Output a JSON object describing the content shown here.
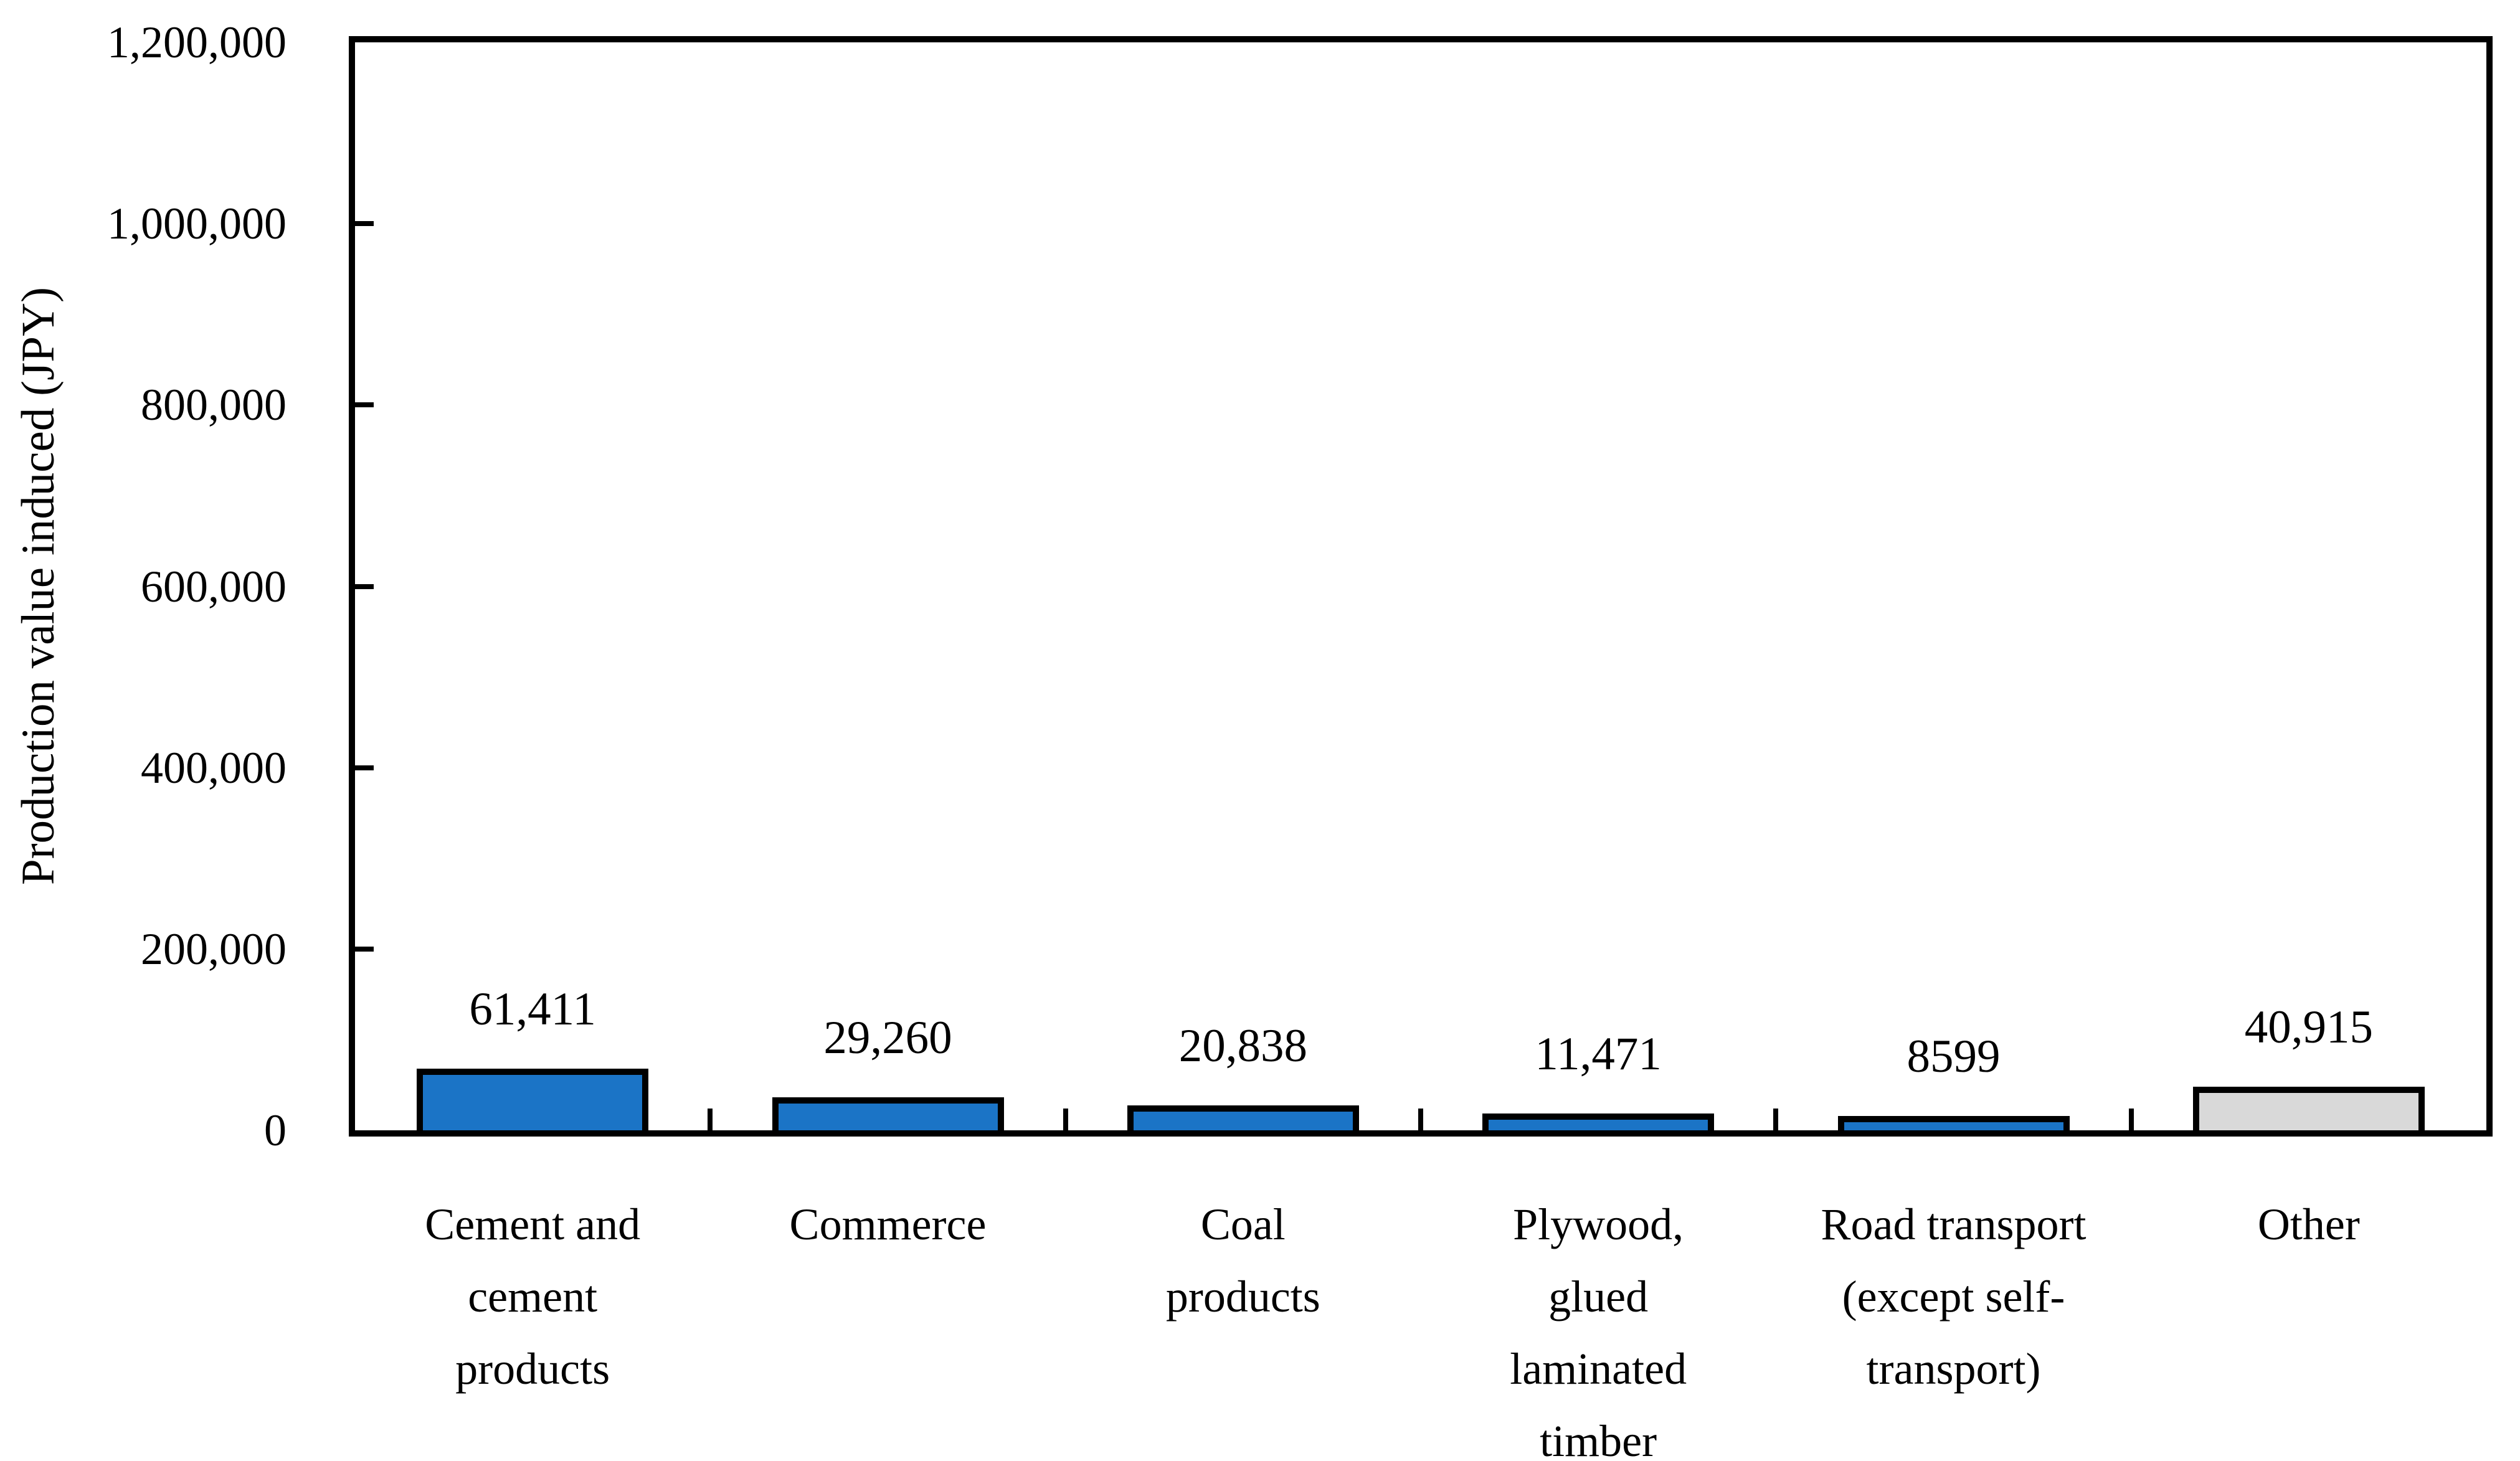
{
  "chart_data": {
    "type": "bar",
    "title": "",
    "xlabel": "",
    "ylabel": "Production value induced (JPY)",
    "ylim": [
      0,
      1200000
    ],
    "ytick_step": 200000,
    "ytick_labels": [
      "0",
      "200,000",
      "400,000",
      "600,000",
      "800,000",
      "1,000,000",
      "1,200,000"
    ],
    "categories": [
      "Cement and cement products",
      "Commerce",
      "Coal products",
      "Plywood, glued laminated timber",
      "Road transport (except self-transport)",
      "Other"
    ],
    "category_display_lines": [
      [
        "Cement and",
        "cement",
        "products"
      ],
      [
        "Commerce"
      ],
      [
        "Coal",
        "products"
      ],
      [
        "Plywood,",
        "glued",
        "laminated",
        "timber"
      ],
      [
        "Road transport",
        "(except self-",
        "transport)"
      ],
      [
        "Other"
      ]
    ],
    "values": [
      61411,
      29260,
      20838,
      11471,
      8599,
      40915
    ],
    "value_labels": [
      "61,411",
      "29,260",
      "20,838",
      "11,471",
      "8599",
      "40,915"
    ],
    "grid": false,
    "legend": false,
    "colors": {
      "bar_fill": [
        "#1B74C6",
        "#1B74C6",
        "#1B74C6",
        "#1B74C6",
        "#1B74C6",
        "#D9D9D9"
      ],
      "bar_border": "#000000",
      "axis": "#000000",
      "text": "#000000",
      "background": "#FFFFFF"
    }
  }
}
